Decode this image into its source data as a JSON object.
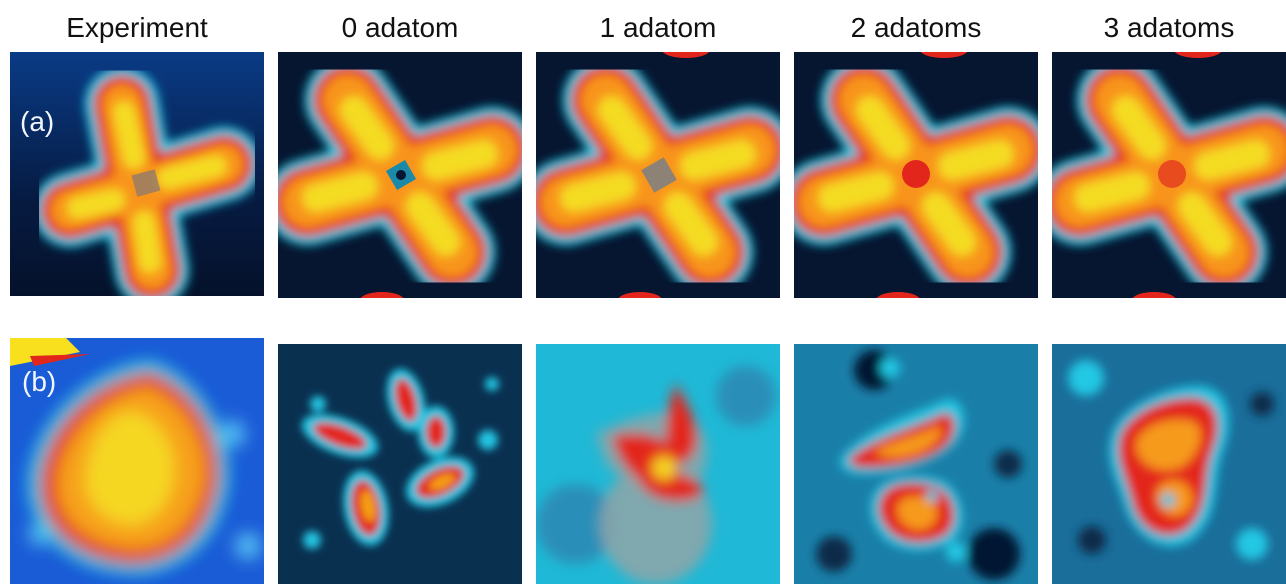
{
  "columns": [
    {
      "title": "Experiment"
    },
    {
      "title": "0 adatom"
    },
    {
      "title": "1 adatom"
    },
    {
      "title": "2 adatoms"
    },
    {
      "title": "3 adatoms"
    }
  ],
  "rows": [
    {
      "label": "(a)"
    },
    {
      "label": "(b)"
    }
  ],
  "colors": {
    "background_dark": "#061530",
    "background_blue": "#1a5bd6",
    "glow_cyan": "#19d6ea",
    "lobe_red": "#e3261c",
    "lobe_orange": "#f79418",
    "lobe_yellow": "#f5e020"
  }
}
